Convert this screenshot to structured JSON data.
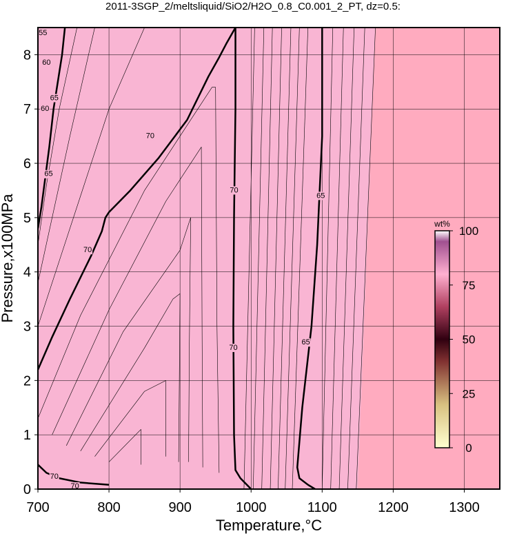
{
  "chart_data": {
    "type": "contour",
    "title": "2011-3SGP_2/meltsliquid/SiO2/H2O_0.8_C0.001_2_PT, dz=0.5:",
    "x_label": "Temperature,°C",
    "y_label": "Pressure,x100MPa",
    "xlim": [
      700,
      1350
    ],
    "ylim": [
      0,
      8.5
    ],
    "xticks": [
      700,
      800,
      900,
      1000,
      1100,
      1200,
      1300
    ],
    "yticks": [
      0,
      1,
      2,
      3,
      4,
      5,
      6,
      7,
      8
    ],
    "grid": true,
    "background_color": "#ffabbf",
    "regions": [
      {
        "color": "#f9b5d3",
        "x": [
          700,
          1150,
          1175,
          700
        ],
        "y": [
          0,
          0,
          8.5,
          8.5
        ]
      }
    ],
    "contours": [
      {
        "level": 70,
        "bold": true,
        "x": [
          700,
          720,
          745,
          775,
          790,
          795,
          800,
          830,
          870,
          910,
          940,
          955,
          965,
          978
        ],
        "y": [
          2.2,
          2.8,
          3.5,
          4.3,
          4.75,
          5.0,
          5.1,
          5.5,
          6.1,
          6.8,
          7.6,
          7.95,
          8.2,
          8.5
        ]
      },
      {
        "level": 70,
        "bold": true,
        "x": [
          978,
          978,
          976,
          975,
          976,
          978,
          985,
          1000
        ],
        "y": [
          8.5,
          7.0,
          5.0,
          3.0,
          1.0,
          0.35,
          0.2,
          0
        ]
      },
      {
        "level": 65,
        "bold": true,
        "x": [
          1100,
          1100,
          1093,
          1085,
          1072,
          1065,
          1068,
          1080,
          1090
        ],
        "y": [
          8.5,
          6.5,
          4.5,
          3.0,
          1.5,
          0.4,
          0.2,
          0.08,
          0
        ]
      },
      {
        "level": 65,
        "bold": true,
        "x": [
          738,
          734,
          728,
          722,
          716,
          710,
          705,
          700
        ],
        "y": [
          8.5,
          8.0,
          7.5,
          7.0,
          6.3,
          5.7,
          5.2,
          4.8
        ]
      },
      {
        "level": 70,
        "bold": true,
        "x": [
          700,
          712,
          730,
          760,
          800
        ],
        "y": [
          0.45,
          0.3,
          0.2,
          0.12,
          0.08
        ]
      },
      {
        "level": 69.5,
        "bold": false,
        "x": [
          700,
          730,
          760,
          800,
          850
        ],
        "y": [
          3.0,
          4.2,
          5.4,
          7.0,
          8.5
        ]
      },
      {
        "level": 69,
        "bold": false,
        "x": [
          700,
          720,
          745,
          780
        ],
        "y": [
          3.8,
          5.0,
          6.5,
          8.5
        ]
      },
      {
        "level": 68.5,
        "bold": false,
        "x": [
          700,
          712,
          730,
          755
        ],
        "y": [
          4.5,
          5.6,
          7.0,
          8.5
        ]
      },
      {
        "level": 70.5,
        "bold": false,
        "x": [
          700,
          760,
          850,
          945,
          950,
          952,
          955
        ],
        "y": [
          1.3,
          3.2,
          5.5,
          7.4,
          7.4,
          3.0,
          0.3
        ]
      },
      {
        "level": 71,
        "bold": false,
        "x": [
          720,
          800,
          880,
          930,
          931,
          932
        ],
        "y": [
          1.0,
          3.3,
          5.3,
          6.3,
          3.0,
          0.4
        ]
      },
      {
        "level": 71.5,
        "bold": false,
        "x": [
          740,
          820,
          900,
          915,
          913,
          912
        ],
        "y": [
          0.8,
          2.9,
          4.4,
          5.0,
          2.5,
          0.5
        ]
      },
      {
        "level": 72,
        "bold": false,
        "x": [
          760,
          850,
          890,
          900,
          899,
          898
        ],
        "y": [
          0.7,
          2.6,
          3.5,
          3.6,
          2.0,
          0.5
        ]
      },
      {
        "level": 72.5,
        "bold": false,
        "x": [
          780,
          850,
          880,
          880
        ],
        "y": [
          0.6,
          1.8,
          2.0,
          0.6
        ]
      },
      {
        "level": 73,
        "bold": false,
        "x": [
          800,
          845,
          845
        ],
        "y": [
          0.5,
          1.1,
          0.45
        ]
      },
      {
        "level": 69.5,
        "bold": false,
        "x": [
          990,
          1005
        ],
        "y": [
          0,
          8.5
        ]
      },
      {
        "level": 69,
        "bold": false,
        "x": [
          1003,
          1018
        ],
        "y": [
          0,
          8.5
        ]
      },
      {
        "level": 68.5,
        "bold": false,
        "x": [
          1015,
          1030
        ],
        "y": [
          0,
          8.5
        ]
      },
      {
        "level": 68,
        "bold": false,
        "x": [
          1027,
          1043
        ],
        "y": [
          0,
          8.5
        ]
      },
      {
        "level": 67.5,
        "bold": false,
        "x": [
          1038,
          1056
        ],
        "y": [
          0,
          8.5
        ]
      },
      {
        "level": 67,
        "bold": false,
        "x": [
          1048,
          1068
        ],
        "y": [
          0,
          8.5
        ]
      },
      {
        "level": 66.5,
        "bold": false,
        "x": [
          1058,
          1080
        ],
        "y": [
          0,
          8.5
        ]
      },
      {
        "level": 64.5,
        "bold": false,
        "x": [
          1100,
          1115
        ],
        "y": [
          0,
          8.5
        ]
      },
      {
        "level": 64,
        "bold": false,
        "x": [
          1112,
          1130
        ],
        "y": [
          0,
          8.5
        ]
      },
      {
        "level": 63.5,
        "bold": false,
        "x": [
          1124,
          1145
        ],
        "y": [
          0,
          8.5
        ]
      },
      {
        "level": 63,
        "bold": false,
        "x": [
          1136,
          1160
        ],
        "y": [
          0,
          8.5
        ]
      },
      {
        "level": 62.5,
        "bold": false,
        "x": [
          1148,
          1175
        ],
        "y": [
          0,
          8.5
        ]
      }
    ],
    "labels": [
      {
        "text": "70",
        "x": 770,
        "y": 4.4
      },
      {
        "text": "70",
        "x": 858,
        "y": 6.5
      },
      {
        "text": "70",
        "x": 976,
        "y": 5.5
      },
      {
        "text": "70",
        "x": 975,
        "y": 2.6
      },
      {
        "text": "65",
        "x": 1098,
        "y": 5.4
      },
      {
        "text": "65",
        "x": 1077,
        "y": 2.7
      },
      {
        "text": "65",
        "x": 715,
        "y": 5.8
      },
      {
        "text": "65",
        "x": 723,
        "y": 7.2
      },
      {
        "text": "60",
        "x": 710,
        "y": 7.0
      },
      {
        "text": "60",
        "x": 712,
        "y": 7.85
      },
      {
        "text": "55",
        "x": 707,
        "y": 8.4
      },
      {
        "text": "70",
        "x": 723,
        "y": 0.23
      },
      {
        "text": "70",
        "x": 752,
        "y": 0.05
      }
    ],
    "colorbar": {
      "label": "wt%",
      "lim": [
        0,
        100
      ],
      "ticks": [
        0,
        25,
        50,
        75,
        100
      ],
      "stops": [
        {
          "value": 0,
          "color": "#ffffd0"
        },
        {
          "value": 20,
          "color": "#d8c080"
        },
        {
          "value": 40,
          "color": "#803030"
        },
        {
          "value": 50,
          "color": "#300010"
        },
        {
          "value": 65,
          "color": "#b04060"
        },
        {
          "value": 80,
          "color": "#ffb0d0"
        },
        {
          "value": 95,
          "color": "#a05090"
        },
        {
          "value": 100,
          "color": "#ffffff"
        }
      ]
    }
  }
}
